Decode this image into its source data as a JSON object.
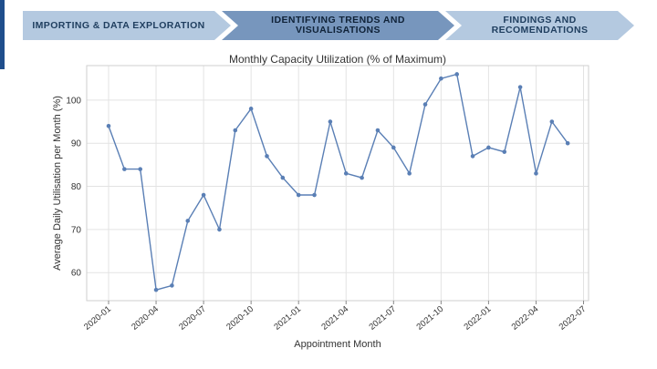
{
  "steps": [
    {
      "label": "IMPORTING & DATA EXPLORATION",
      "active": false
    },
    {
      "label": "IDENTIFYING TRENDS AND VISUALISATIONS",
      "active": true
    },
    {
      "label": "FINDINGS AND RECOMENDATIONS",
      "active": false
    }
  ],
  "colors": {
    "accent": "#1f4e8c",
    "step_inactive": "#b4c9e0",
    "step_active": "#7796bd",
    "series": "#5a7fb5",
    "grid": "#e3e3e3"
  },
  "chart_data": {
    "type": "line",
    "title": "Monthly Capacity Utilization (% of Maximum)",
    "xlabel": "Appointment Month",
    "ylabel": "Average Daily Utilisation per Month (%)",
    "x_tick_labels": [
      "2020-01",
      "2020-04",
      "2020-07",
      "2020-10",
      "2021-01",
      "2021-04",
      "2021-07",
      "2021-10",
      "2022-01",
      "2022-04",
      "2022-07"
    ],
    "y_ticks": [
      60,
      70,
      80,
      90,
      100
    ],
    "ylim": [
      53.5,
      108
    ],
    "grid": true,
    "x": [
      "2020-01",
      "2020-02",
      "2020-03",
      "2020-04",
      "2020-05",
      "2020-06",
      "2020-07",
      "2020-08",
      "2020-09",
      "2020-10",
      "2020-11",
      "2020-12",
      "2021-01",
      "2021-02",
      "2021-03",
      "2021-04",
      "2021-05",
      "2021-06",
      "2021-07",
      "2021-08",
      "2021-09",
      "2021-10",
      "2021-11",
      "2021-12",
      "2022-01",
      "2022-02",
      "2022-03",
      "2022-04",
      "2022-05",
      "2022-06"
    ],
    "values": [
      94,
      84,
      84,
      56,
      57,
      72,
      78,
      70,
      93,
      98,
      87,
      82,
      78,
      78,
      95,
      83,
      82,
      93,
      89,
      83,
      99,
      105,
      106,
      87,
      89,
      88,
      103,
      83,
      95,
      90
    ]
  }
}
